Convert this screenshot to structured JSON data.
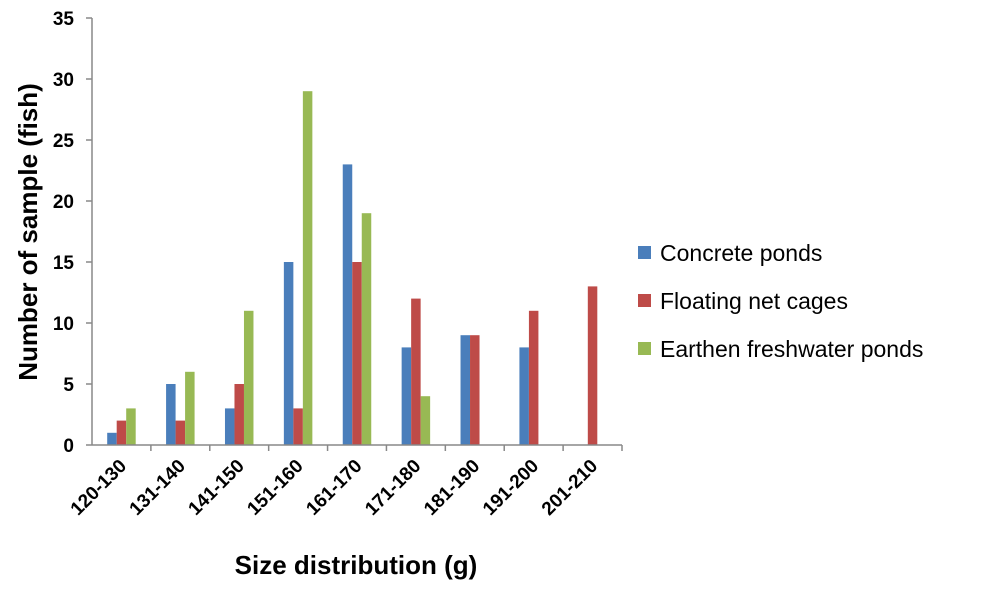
{
  "chart_data": {
    "type": "bar",
    "xlabel": "Size distribution (g)",
    "ylabel": "Number of sample (fish)",
    "ylim": [
      0,
      35
    ],
    "yticks": [
      0,
      5,
      10,
      15,
      20,
      25,
      30,
      35
    ],
    "categories": [
      "120-130",
      "131-140",
      "141-150",
      "151-160",
      "161-170",
      "171-180",
      "181-190",
      "191-200",
      "201-210"
    ],
    "series": [
      {
        "name": "Concrete ponds",
        "color": "#4a7ebb",
        "values": [
          1,
          5,
          3,
          15,
          23,
          8,
          9,
          8,
          0
        ]
      },
      {
        "name": "Floating net cages",
        "color": "#be4b48",
        "values": [
          2,
          2,
          5,
          3,
          15,
          12,
          9,
          11,
          13
        ]
      },
      {
        "name": "Earthen freshwater ponds",
        "color": "#98b954",
        "values": [
          3,
          6,
          11,
          29,
          19,
          4,
          0,
          0,
          0
        ]
      }
    ],
    "grid": false,
    "legend_position": "right"
  }
}
